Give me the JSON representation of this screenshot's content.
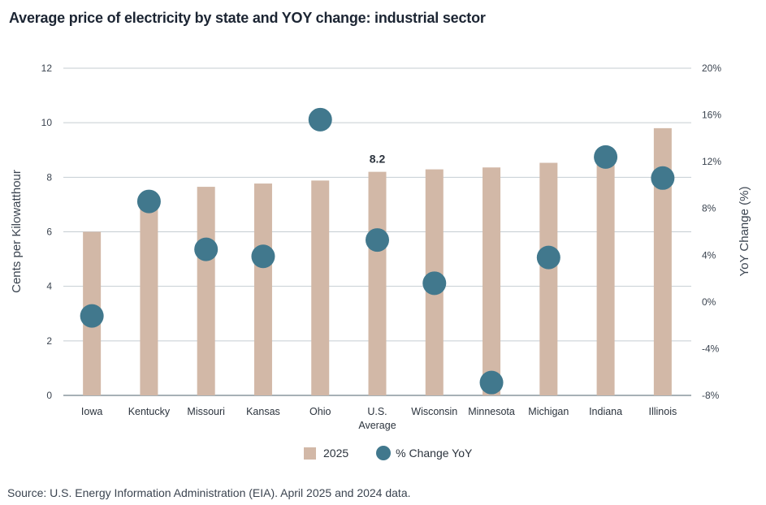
{
  "chart_data": {
    "type": "bar",
    "title": "Average price of electricity by state and YOY change: industrial sector",
    "categories": [
      "Iowa",
      "Kentucky",
      "Missouri",
      "Kansas",
      "Ohio",
      "U.S. Average",
      "Wisconsin",
      "Minnesota",
      "Michigan",
      "Indiana",
      "Illinois"
    ],
    "category_lines": [
      [
        "Iowa"
      ],
      [
        "Kentucky"
      ],
      [
        "Missouri"
      ],
      [
        "Kansas"
      ],
      [
        "Ohio"
      ],
      [
        "U.S.",
        "Average"
      ],
      [
        "Wisconsin"
      ],
      [
        "Minnesota"
      ],
      [
        "Michigan"
      ],
      [
        "Indiana"
      ],
      [
        "Illinois"
      ]
    ],
    "series": [
      {
        "name": "2025",
        "type": "bar",
        "axis": "left",
        "color": "#d2b8a7",
        "values": [
          6.0,
          7.1,
          7.65,
          7.77,
          7.88,
          8.2,
          8.29,
          8.36,
          8.53,
          8.8,
          9.8
        ]
      },
      {
        "name": "% Change YoY",
        "type": "scatter",
        "axis": "right",
        "color": "#41788d",
        "values": [
          -1.2,
          8.6,
          4.5,
          3.9,
          15.6,
          5.3,
          1.6,
          -6.9,
          3.8,
          12.4,
          10.6
        ]
      }
    ],
    "data_labels": [
      {
        "category": "U.S. Average",
        "text": "8.2"
      }
    ],
    "ylabel": "Cents per Kilowatthour",
    "ylim": [
      0,
      12
    ],
    "yticks": [
      0,
      2,
      4,
      6,
      8,
      10,
      12
    ],
    "y2label": "YoY Change (%)",
    "y2lim": [
      -8,
      20
    ],
    "y2ticks": [
      "-8%",
      "-4%",
      "0%",
      "4%",
      "8%",
      "12%",
      "16%",
      "20%"
    ],
    "y2tick_values": [
      -8,
      -4,
      0,
      4,
      8,
      12,
      16,
      20
    ],
    "grid": true,
    "legend_position": "bottom-center",
    "source": "Source: U.S. Energy Information Administration (EIA). April 2025 and 2024 data."
  },
  "legend": {
    "bar_label": "2025",
    "dot_label": "% Change YoY"
  },
  "colors": {
    "bar": "#d2b8a7",
    "dot": "#41788d",
    "grid": "#c5cdd2",
    "baseline": "#8a979e"
  }
}
